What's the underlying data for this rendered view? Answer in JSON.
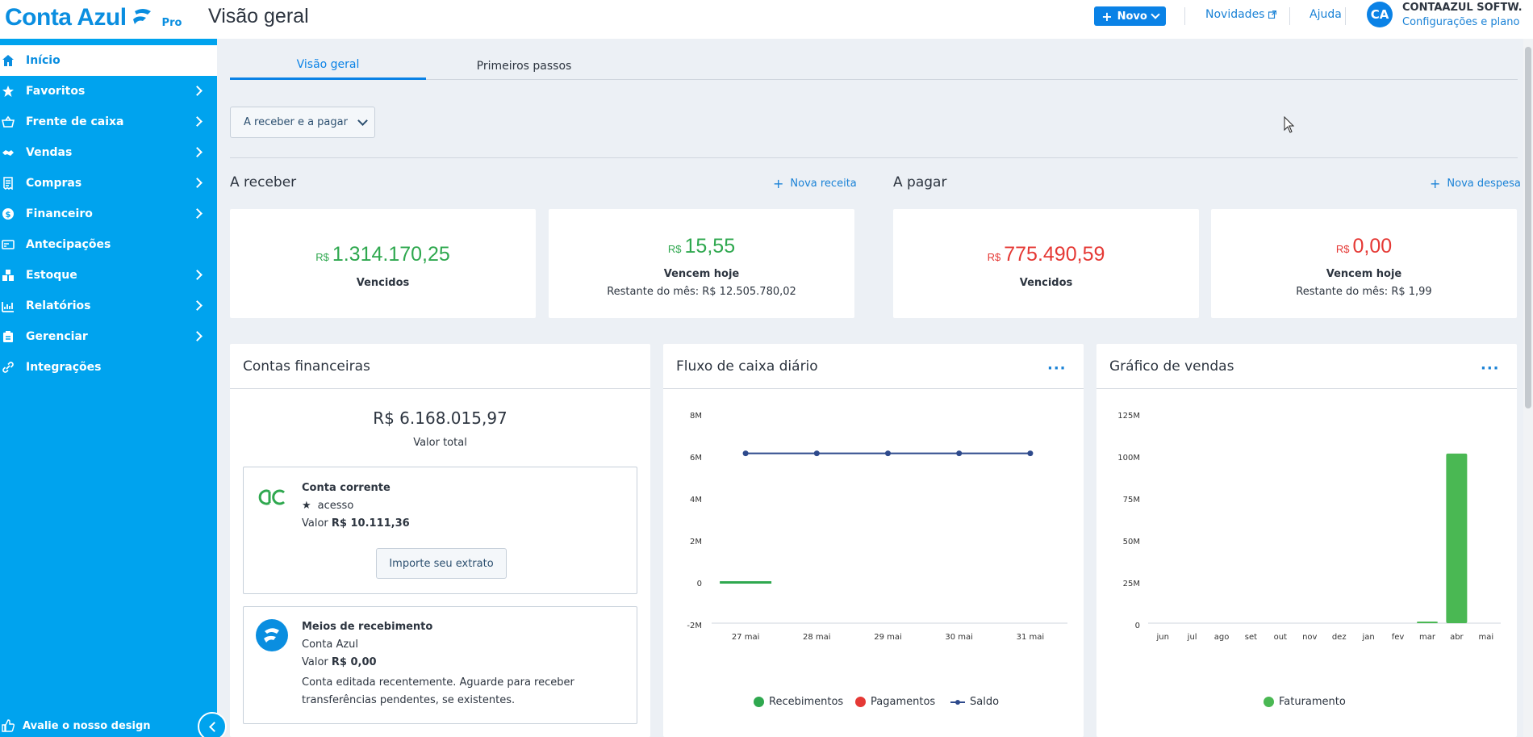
{
  "header": {
    "brand": "Conta Azul",
    "plan": "Pro",
    "page_title": "Visão geral",
    "new_button": "Novo",
    "links": {
      "news": "Novidades",
      "help": "Ajuda"
    },
    "avatar_initials": "CA",
    "company": "CONTAAZUL SOFTW...",
    "company_sub": "Configurações e plano"
  },
  "sidebar": {
    "items": [
      {
        "label": "Início",
        "icon": "home-icon",
        "active": true
      },
      {
        "label": "Favoritos",
        "icon": "star-icon"
      },
      {
        "label": "Frente de caixa",
        "icon": "basket-icon"
      },
      {
        "label": "Vendas",
        "icon": "handshake-icon"
      },
      {
        "label": "Compras",
        "icon": "receipt-icon"
      },
      {
        "label": "Financeiro",
        "icon": "dollar-icon"
      },
      {
        "label": "Antecipações",
        "icon": "card-icon"
      },
      {
        "label": "Estoque",
        "icon": "boxes-icon"
      },
      {
        "label": "Relatórios",
        "icon": "chart-icon"
      },
      {
        "label": "Gerenciar",
        "icon": "clipboard-icon"
      },
      {
        "label": "Integrações",
        "icon": "link-icon"
      }
    ],
    "footer": "Avalie o nosso design"
  },
  "tabs": [
    "Visão geral",
    "Primeiros passos"
  ],
  "filter": "A receber e a pagar",
  "receivable": {
    "title": "A receber",
    "link": "Nova receita",
    "overdue": {
      "currency": "R$",
      "value": "1.314.170,25",
      "label": "Vencidos"
    },
    "today": {
      "currency": "R$",
      "value": "15,55",
      "label": "Vencem hoje",
      "sub": "Restante do mês: R$ 12.505.780,02"
    }
  },
  "payable": {
    "title": "A pagar",
    "link": "Nova despesa",
    "overdue": {
      "currency": "R$",
      "value": "775.490,59",
      "label": "Vencidos"
    },
    "today": {
      "currency": "R$",
      "value": "0,00",
      "label": "Vencem hoje",
      "sub": "Restante do mês: R$ 1,99"
    }
  },
  "accounts": {
    "title": "Contas financeiras",
    "total": "R$ 6.168.015,97",
    "total_label": "Valor total",
    "items": [
      {
        "name": "Conta corrente",
        "bank": "acesso",
        "value_label": "Valor",
        "value": "R$ 10.111,36",
        "button": "Importe seu extrato"
      },
      {
        "name": "Meios de recebimento",
        "bank": "Conta Azul",
        "value_label": "Valor",
        "value": "R$ 0,00",
        "note": "Conta editada recentemente. Aguarde para receber transferências pendentes, se existentes."
      }
    ]
  },
  "cashflow": {
    "title": "Fluxo de caixa diário",
    "more": "···",
    "legend": [
      "Recebimentos",
      "Pagamentos",
      "Saldo"
    ]
  },
  "sales": {
    "title": "Gráfico de vendas",
    "more": "···",
    "legend": [
      "Faturamento"
    ]
  },
  "colors": {
    "primary": "#0a82e6",
    "sidebar": "#00a3ee",
    "positive": "#2fa84f",
    "negative": "#e53935",
    "balance_line": "#2e4a8c"
  },
  "chart_data": [
    {
      "type": "line",
      "title": "Fluxo de caixa diário",
      "categories": [
        "27 mai",
        "28 mai",
        "29 mai",
        "30 mai",
        "31 mai"
      ],
      "yticks": [
        "8M",
        "6M",
        "4M",
        "2M",
        "0",
        "-2M"
      ],
      "ylim": [
        -2000000,
        8000000
      ],
      "series": [
        {
          "name": "Recebimentos",
          "type": "bar",
          "color": "#2fa84f",
          "values": [
            15.55,
            0,
            0,
            0,
            0
          ]
        },
        {
          "name": "Pagamentos",
          "type": "bar",
          "color": "#e53935",
          "values": [
            0,
            0,
            0,
            0,
            0
          ]
        },
        {
          "name": "Saldo",
          "type": "line",
          "color": "#2e4a8c",
          "values": [
            6168015.97,
            6168015.97,
            6168015.97,
            6168015.97,
            6168015.97
          ]
        }
      ],
      "legend": "bottom"
    },
    {
      "type": "bar",
      "title": "Gráfico de vendas",
      "categories": [
        "jun",
        "jul",
        "ago",
        "set",
        "out",
        "nov",
        "dez",
        "jan",
        "fev",
        "mar",
        "abr",
        "mai"
      ],
      "yticks": [
        "125M",
        "100M",
        "75M",
        "50M",
        "25M",
        "0"
      ],
      "ylim": [
        0,
        125000000
      ],
      "series": [
        {
          "name": "Faturamento",
          "color": "#4ab853",
          "values": [
            0,
            0,
            0,
            0,
            0,
            0,
            0,
            0,
            0,
            300000,
            101000000,
            0
          ]
        }
      ],
      "legend": "bottom"
    }
  ]
}
